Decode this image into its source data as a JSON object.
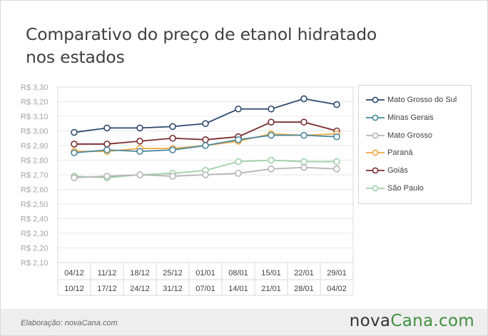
{
  "title_line1": "Comparativo do preço de etanol hidratado",
  "title_line2": "nos estados",
  "footer": {
    "credit": "Elaboração: novaCana.com",
    "logo_part1": "nova",
    "logo_part2": "Cana.com"
  },
  "colors": {
    "background": "#ffffff",
    "footer": "#eeeeee",
    "logo_accent": "#3f8f3f",
    "grid": "#e6e6e6"
  },
  "chart_data": {
    "type": "line",
    "title": "Comparativo do preço de etanol hidratado nos estados",
    "ylim": [
      2.1,
      3.3
    ],
    "y_ticks": [
      "R$ 3,30",
      "R$ 3,20",
      "R$ 3,10",
      "R$ 3,00",
      "R$ 2,90",
      "R$ 2,80",
      "R$ 2,70",
      "R$ 2,60",
      "R$ 2,50",
      "R$ 2,40",
      "R$ 2,30",
      "R$ 2,20",
      "R$ 2,10"
    ],
    "categories": [
      "04/12 10/12",
      "11/12 17/12",
      "18/12 24/12",
      "25/12 31/12",
      "01/01 07/01",
      "08/01 14/01",
      "15/01 21/01",
      "22/01 28/01",
      "29/01 04/02"
    ],
    "category_labels": [
      [
        "04/12",
        "10/12"
      ],
      [
        "11/12",
        "17/12"
      ],
      [
        "18/12",
        "24/12"
      ],
      [
        "25/12",
        "31/12"
      ],
      [
        "01/01",
        "07/01"
      ],
      [
        "08/01",
        "14/01"
      ],
      [
        "15/01",
        "21/01"
      ],
      [
        "22/01",
        "28/01"
      ],
      [
        "29/01",
        "04/02"
      ]
    ],
    "legend_position": "right",
    "grid": true,
    "series": [
      {
        "name": "Mato Grosso do Sul",
        "color": "#2e4a6e",
        "values": [
          2.99,
          3.02,
          3.02,
          3.03,
          3.05,
          3.15,
          3.15,
          3.22,
          3.18
        ]
      },
      {
        "name": "Minas Gerais",
        "color": "#4a8aa0",
        "values": [
          2.85,
          2.87,
          2.86,
          2.87,
          2.9,
          2.94,
          2.97,
          2.97,
          2.96
        ]
      },
      {
        "name": "Mato Grosso",
        "color": "#b5b5b5",
        "values": [
          2.68,
          2.69,
          2.7,
          2.69,
          2.7,
          2.71,
          2.74,
          2.75,
          2.74
        ]
      },
      {
        "name": "Paraná",
        "color": "#f0a840",
        "values": [
          2.86,
          2.86,
          2.88,
          2.88,
          2.9,
          2.93,
          2.98,
          2.97,
          2.98
        ]
      },
      {
        "name": "Goiás",
        "color": "#7a2e32",
        "values": [
          2.91,
          2.91,
          2.93,
          2.95,
          2.94,
          2.96,
          3.06,
          3.06,
          3.0
        ]
      },
      {
        "name": "São Paulo",
        "color": "#9fd0a8",
        "values": [
          2.69,
          2.68,
          2.7,
          2.71,
          2.73,
          2.79,
          2.8,
          2.79,
          2.79
        ]
      }
    ]
  }
}
